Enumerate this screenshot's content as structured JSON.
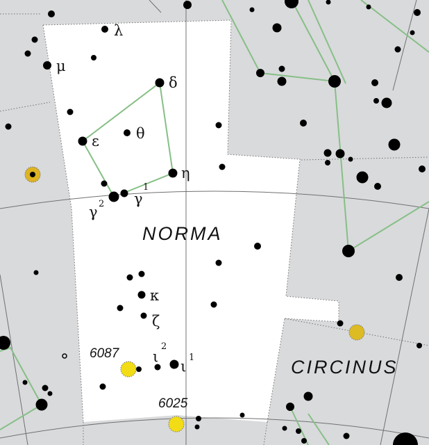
{
  "map": {
    "constellation_name": "NORMA",
    "neighbor_name": "CIRCINUS",
    "colors": {
      "background_outside": "#d9dadc",
      "constellation_area": "#ffffff",
      "figure_line": "#86bf86",
      "grid_line": "#707070",
      "boundary_line": "#707070",
      "star": "#000000",
      "dso_fill": "#f2dc16",
      "dso_fill_dim": "#ddbb22"
    },
    "star_labels": {
      "lambda": "λ",
      "mu": "μ",
      "delta": "δ",
      "theta": "θ",
      "epsilon": "ε",
      "eta": "η",
      "gamma1": "γ",
      "gamma1_sup": "1",
      "gamma2": "γ",
      "gamma2_sup": "2",
      "kappa": "κ",
      "zeta": "ζ",
      "iota2": "ι",
      "iota2_sup": "2",
      "iota1": "ι",
      "iota1_sup": "1"
    },
    "deep_sky": {
      "ngc6087": "6087",
      "ngc6025": "6025"
    }
  }
}
